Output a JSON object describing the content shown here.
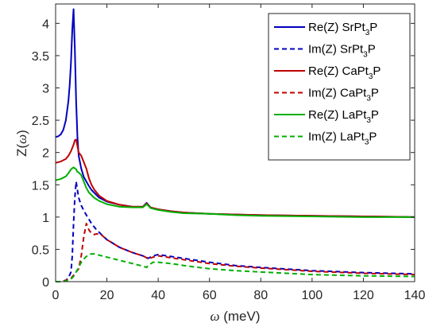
{
  "chart_data": {
    "type": "line",
    "xlabel": "ω (meV)",
    "ylabel": "Z(ω)",
    "xlim": [
      0,
      140
    ],
    "ylim": [
      0,
      4.3
    ],
    "xticks": [
      0,
      20,
      40,
      60,
      80,
      100,
      120,
      140
    ],
    "yticks": [
      0,
      0.5,
      1,
      1.5,
      2,
      2.5,
      3,
      3.5,
      4
    ],
    "grid": false,
    "legend_position": "top-right",
    "series": [
      {
        "name": "Re(Z) SrPt3P",
        "color": "#0000bf",
        "style": "solid",
        "x": [
          0,
          1,
          2,
          3,
          4,
          5,
          5.5,
          6,
          6.5,
          7,
          7.5,
          8,
          8.5,
          9,
          9.5,
          10,
          11,
          12,
          13,
          14,
          15,
          17,
          20,
          25,
          30,
          34,
          35.5,
          37,
          40,
          45,
          50,
          60,
          70,
          80,
          100,
          120,
          140
        ],
        "values": [
          2.24,
          2.25,
          2.28,
          2.35,
          2.5,
          2.8,
          3.05,
          3.4,
          3.9,
          4.22,
          3.6,
          2.8,
          2.25,
          1.95,
          1.85,
          1.75,
          1.62,
          1.55,
          1.48,
          1.42,
          1.38,
          1.3,
          1.24,
          1.19,
          1.16,
          1.16,
          1.22,
          1.15,
          1.12,
          1.09,
          1.07,
          1.05,
          1.04,
          1.03,
          1.02,
          1.01,
          1.0
        ]
      },
      {
        "name": "Im(Z) SrPt3P",
        "color": "#0000bf",
        "style": "dashed",
        "x": [
          0,
          2,
          4,
          5,
          6,
          6.5,
          7,
          7.5,
          8,
          8.5,
          9,
          10,
          11,
          12,
          14,
          16,
          20,
          25,
          30,
          34,
          35.5,
          36,
          38,
          40,
          45,
          50,
          60,
          70,
          80,
          100,
          120,
          140
        ],
        "values": [
          0.0,
          0.0,
          0.02,
          0.06,
          0.15,
          0.4,
          0.9,
          1.3,
          1.55,
          1.42,
          1.3,
          1.18,
          1.1,
          1.03,
          0.9,
          0.8,
          0.65,
          0.53,
          0.45,
          0.4,
          0.38,
          0.36,
          0.4,
          0.42,
          0.39,
          0.36,
          0.3,
          0.25,
          0.22,
          0.17,
          0.14,
          0.12
        ]
      },
      {
        "name": "Re(Z) CaPt3P",
        "color": "#bf0000",
        "style": "solid",
        "x": [
          0,
          2,
          4,
          5,
          6,
          7,
          7.5,
          8,
          8.5,
          9,
          10,
          11,
          12,
          13,
          14,
          15,
          17,
          20,
          25,
          30,
          34,
          35.5,
          37,
          40,
          45,
          50,
          60,
          70,
          80,
          100,
          120,
          140
        ],
        "values": [
          1.84,
          1.86,
          1.9,
          1.95,
          2.02,
          2.12,
          2.19,
          2.2,
          2.1,
          2.0,
          1.95,
          1.85,
          1.75,
          1.6,
          1.5,
          1.43,
          1.33,
          1.25,
          1.19,
          1.16,
          1.16,
          1.21,
          1.15,
          1.12,
          1.09,
          1.07,
          1.05,
          1.04,
          1.03,
          1.02,
          1.01,
          1.0
        ]
      },
      {
        "name": "Im(Z) CaPt3P",
        "color": "#bf0000",
        "style": "dashed",
        "x": [
          0,
          2,
          4,
          6,
          7,
          8,
          9,
          10,
          11,
          12,
          13,
          14,
          15,
          16,
          18,
          20,
          25,
          30,
          34,
          35.5,
          36,
          38,
          40,
          45,
          50,
          60,
          70,
          80,
          100,
          120,
          140
        ],
        "values": [
          0.0,
          0.0,
          0.02,
          0.05,
          0.1,
          0.15,
          0.2,
          0.4,
          0.7,
          0.9,
          0.8,
          0.75,
          0.73,
          0.74,
          0.72,
          0.65,
          0.53,
          0.45,
          0.4,
          0.37,
          0.35,
          0.38,
          0.4,
          0.37,
          0.34,
          0.28,
          0.24,
          0.21,
          0.16,
          0.13,
          0.11
        ]
      },
      {
        "name": "Re(Z) LaPt3P",
        "color": "#00b000",
        "style": "solid",
        "x": [
          0,
          2,
          4,
          5,
          6,
          7,
          8,
          8.5,
          9,
          10,
          11,
          12,
          13,
          15,
          17,
          20,
          25,
          30,
          34,
          35.5,
          37,
          40,
          45,
          50,
          60,
          70,
          80,
          100,
          120,
          140
        ],
        "values": [
          1.57,
          1.59,
          1.63,
          1.68,
          1.74,
          1.77,
          1.74,
          1.7,
          1.69,
          1.65,
          1.55,
          1.45,
          1.38,
          1.3,
          1.25,
          1.2,
          1.16,
          1.15,
          1.15,
          1.2,
          1.14,
          1.11,
          1.08,
          1.06,
          1.05,
          1.03,
          1.02,
          1.01,
          1.0,
          1.0
        ]
      },
      {
        "name": "Im(Z) LaPt3P",
        "color": "#00b000",
        "style": "dashed",
        "x": [
          0,
          2,
          4,
          6,
          7,
          8,
          9,
          10,
          11,
          12,
          13,
          14,
          15,
          16,
          18,
          20,
          25,
          30,
          34,
          35.5,
          36,
          38,
          40,
          45,
          50,
          60,
          70,
          80,
          100,
          120,
          140
        ],
        "values": [
          0.0,
          0.0,
          0.01,
          0.04,
          0.08,
          0.15,
          0.22,
          0.3,
          0.35,
          0.39,
          0.42,
          0.43,
          0.43,
          0.42,
          0.4,
          0.38,
          0.33,
          0.28,
          0.24,
          0.22,
          0.25,
          0.3,
          0.3,
          0.28,
          0.25,
          0.2,
          0.17,
          0.15,
          0.11,
          0.09,
          0.08
        ]
      }
    ]
  },
  "legend": [
    {
      "prefix": "Re(Z) ",
      "base": "SrPt",
      "sub": "3",
      "suffix": "P"
    },
    {
      "prefix": "Im(Z) ",
      "base": "SrPt",
      "sub": "3",
      "suffix": "P"
    },
    {
      "prefix": "Re(Z) ",
      "base": "CaPt",
      "sub": "3",
      "suffix": "P"
    },
    {
      "prefix": "Im(Z) ",
      "base": "CaPt",
      "sub": "3",
      "suffix": "P"
    },
    {
      "prefix": "Re(Z) ",
      "base": "LaPt",
      "sub": "3",
      "suffix": "P"
    },
    {
      "prefix": "Im(Z) ",
      "base": "LaPt",
      "sub": "3",
      "suffix": "P"
    }
  ],
  "axis_text": {
    "x_symbol": "ω",
    "x_unit": " (meV)",
    "y_prefix": "Z(",
    "y_symbol": "ω",
    "y_suffix": ")"
  }
}
